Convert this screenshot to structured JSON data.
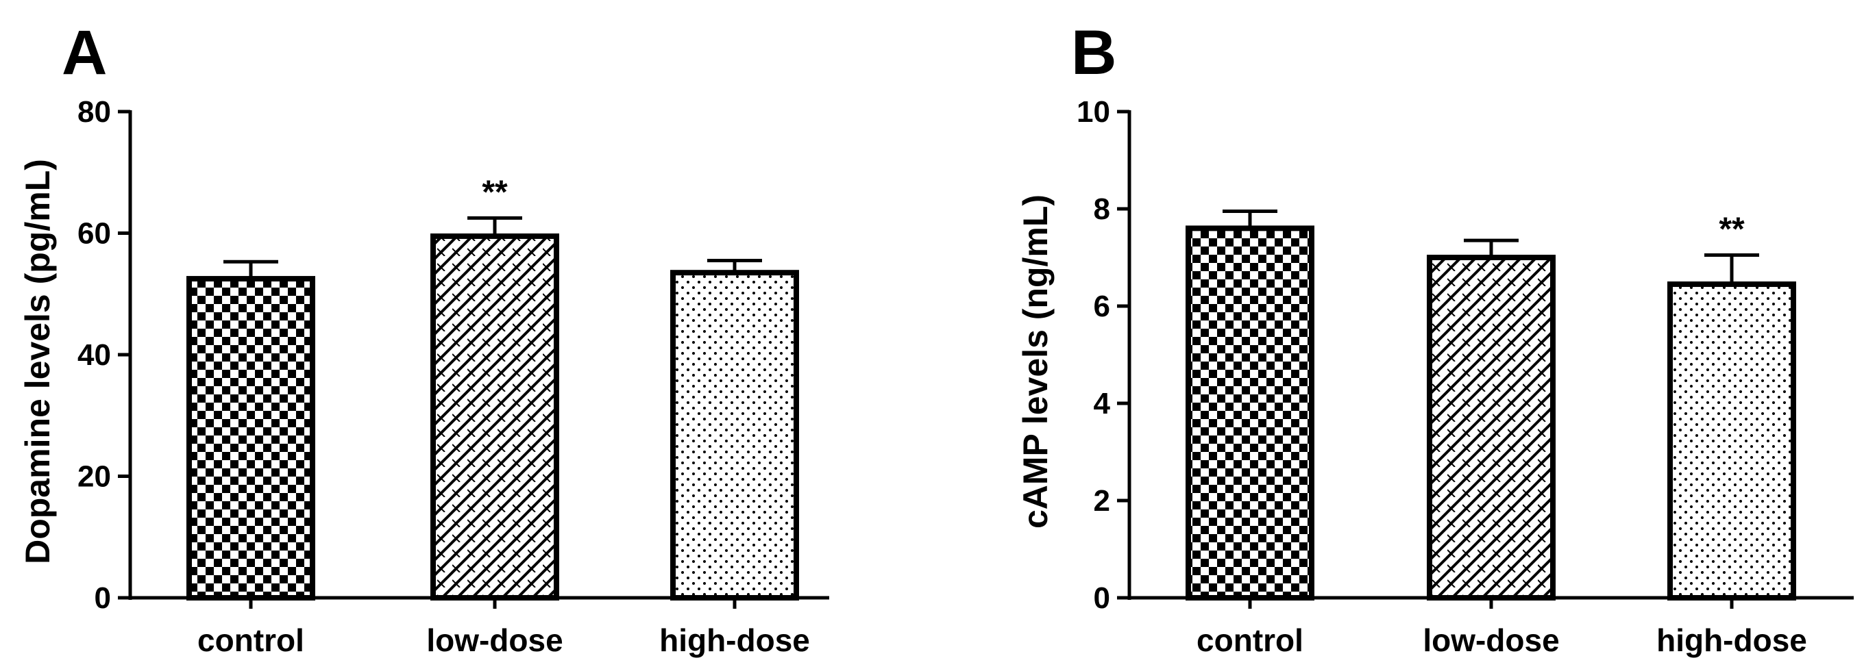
{
  "chart_data": [
    {
      "type": "bar",
      "panel_label": "A",
      "ylabel": "Dopamine levels (pg/mL)",
      "xlabel": "",
      "ylim": [
        0,
        80
      ],
      "yticks": [
        0,
        20,
        40,
        60,
        80
      ],
      "categories": [
        "control",
        "low-dose",
        "high-dose"
      ],
      "values": [
        52.5,
        59.5,
        53.5
      ],
      "errors": [
        2.8,
        3.0,
        2.0
      ],
      "patterns": [
        "checker",
        "diagonal-hatch",
        "dots"
      ],
      "annotations": [
        "",
        "**",
        ""
      ],
      "grid": false,
      "legend": "none"
    },
    {
      "type": "bar",
      "panel_label": "B",
      "ylabel": "cAMP levels (ng/mL)",
      "xlabel": "",
      "ylim": [
        0,
        10
      ],
      "yticks": [
        0,
        2,
        4,
        6,
        8,
        10
      ],
      "categories": [
        "control",
        "low-dose",
        "high-dose"
      ],
      "values": [
        7.6,
        7.0,
        6.45
      ],
      "errors": [
        0.35,
        0.35,
        0.6
      ],
      "patterns": [
        "checker",
        "diagonal-hatch",
        "dots"
      ],
      "annotations": [
        "",
        "",
        "**"
      ],
      "grid": false,
      "legend": "none"
    }
  ],
  "colors": {
    "bar_outline": "#000000",
    "pattern": "#000000",
    "background": "#ffffff"
  }
}
